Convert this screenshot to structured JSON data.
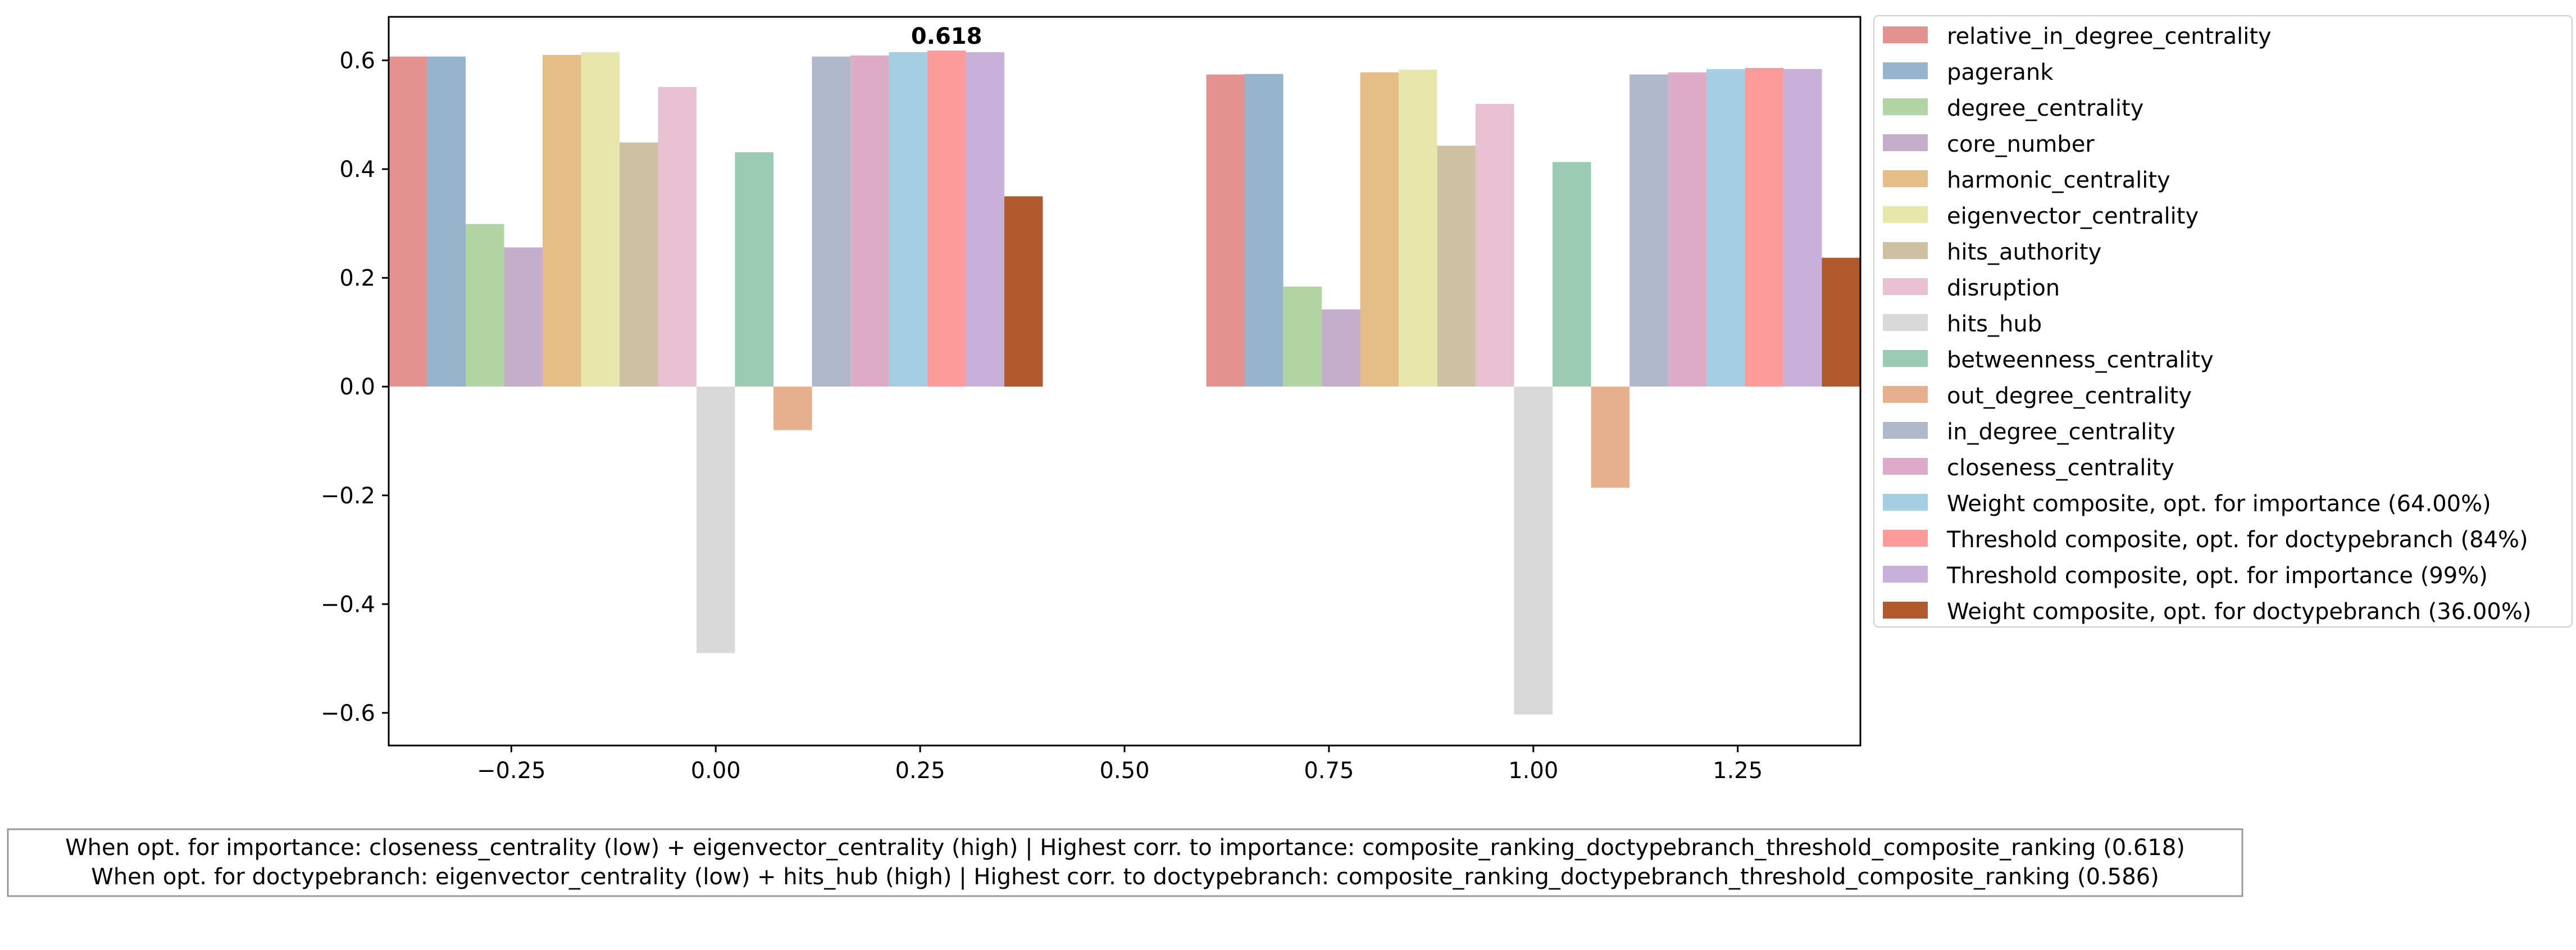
{
  "chart_data": {
    "type": "bar",
    "x_groups": [
      0,
      1
    ],
    "x_ticks": [
      "−0.25",
      "0.00",
      "0.25",
      "0.50",
      "0.75",
      "1.00",
      "1.25"
    ],
    "x_tick_values": [
      -0.25,
      0.0,
      0.25,
      0.5,
      0.75,
      1.0,
      1.25
    ],
    "y_ticks": [
      "−0.6",
      "−0.4",
      "−0.2",
      "0.0",
      "0.2",
      "0.4",
      "0.6"
    ],
    "y_tick_values": [
      -0.6,
      -0.4,
      -0.2,
      0.0,
      0.2,
      0.4,
      0.6
    ],
    "xlim": [
      -0.4,
      1.4
    ],
    "ylim": [
      -0.66,
      0.68
    ],
    "grid": false,
    "legend_position": "outside-right",
    "series": [
      {
        "name": "relative_in_degree_centrality",
        "color": "#e3928f",
        "values": [
          0.607,
          0.574
        ]
      },
      {
        "name": "pagerank",
        "color": "#97b4cb",
        "values": [
          0.607,
          0.575
        ]
      },
      {
        "name": "degree_centrality",
        "color": "#b2d5a5",
        "values": [
          0.299,
          0.184
        ]
      },
      {
        "name": "core_number",
        "color": "#c5aecb",
        "values": [
          0.256,
          0.142
        ]
      },
      {
        "name": "harmonic_centrality",
        "color": "#e6bd87",
        "values": [
          0.61,
          0.578
        ]
      },
      {
        "name": "eigenvector_centrality",
        "color": "#e7e7ac",
        "values": [
          0.615,
          0.583
        ]
      },
      {
        "name": "hits_authority",
        "color": "#cec0a3",
        "values": [
          0.449,
          0.443
        ]
      },
      {
        "name": "disruption",
        "color": "#e7c0d2",
        "values": [
          0.551,
          0.52
        ]
      },
      {
        "name": "hits_hub",
        "color": "#d9d9d9",
        "values": [
          -0.49,
          -0.603
        ]
      },
      {
        "name": "betweenness_centrality",
        "color": "#99cab2",
        "values": [
          0.431,
          0.413
        ]
      },
      {
        "name": "out_degree_centrality",
        "color": "#e6b08f",
        "values": [
          -0.08,
          -0.186
        ]
      },
      {
        "name": "in_degree_centrality",
        "color": "#b0b8cc",
        "values": [
          0.607,
          0.574
        ]
      },
      {
        "name": "closeness_centrality",
        "color": "#ddadc8",
        "values": [
          0.609,
          0.578
        ]
      },
      {
        "name": "Weight composite, opt. for importance (64.00%)",
        "color": "#a5cfe3",
        "values": [
          0.615,
          0.584
        ]
      },
      {
        "name": "Threshold composite, opt. for doctypebranch (84%)",
        "color": "#fb9b9b",
        "values": [
          0.618,
          0.586
        ]
      },
      {
        "name": "Threshold composite, opt. for importance (99%)",
        "color": "#c8b0da",
        "values": [
          0.615,
          0.584
        ]
      },
      {
        "name": "Weight composite, opt. for doctypebranch (36.00%)",
        "color": "#b05a2c",
        "values": [
          0.35,
          0.237
        ]
      }
    ],
    "annotation": {
      "text": "0.618",
      "series_index": 14,
      "group_index": 0
    },
    "footer_lines": [
      "When opt. for importance: closeness_centrality (low) + eigenvector_centrality (high) | Highest corr. to importance: composite_ranking_doctypebranch_threshold_composite_ranking (0.618)",
      "When opt. for doctypebranch: eigenvector_centrality (low) + hits_hub (high) | Highest corr. to doctypebranch: composite_ranking_doctypebranch_threshold_composite_ranking (0.586)"
    ]
  }
}
